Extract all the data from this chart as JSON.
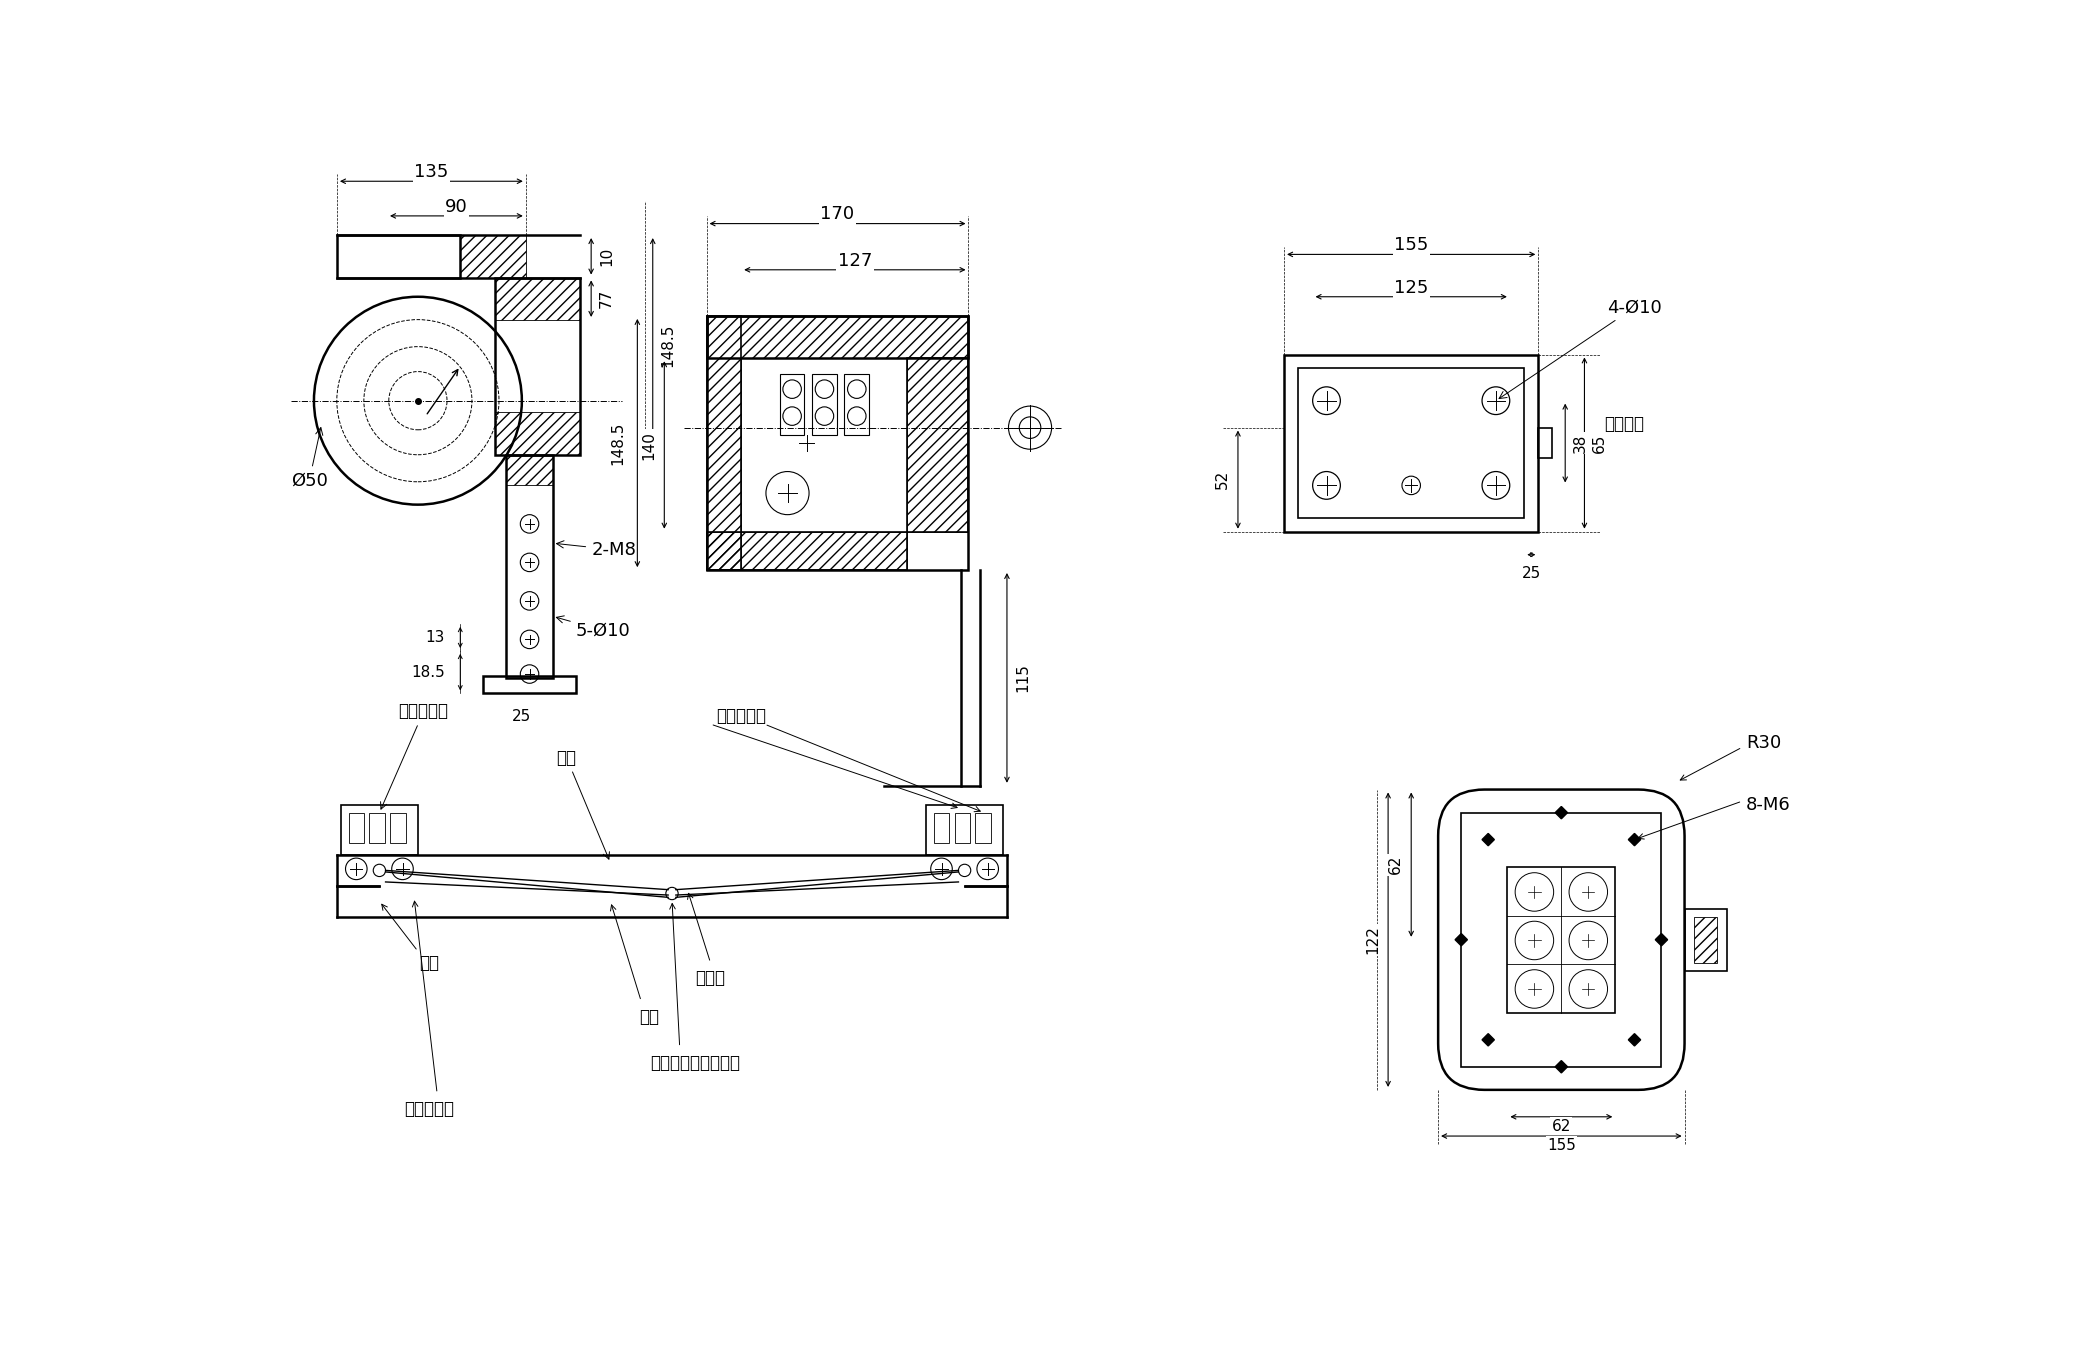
{
  "bg_color": "#ffffff",
  "line_color": "#000000",
  "fig_width": 21.0,
  "fig_height": 13.5,
  "dpi": 100,
  "labels": {
    "jiance": "擕裂检测器",
    "jiaodai": "胶带",
    "zhijia": "支架",
    "xianka": "线扣",
    "gangsi": "钓丝绳",
    "liangtiao": "两条挡索重叠的地方",
    "zhelibukou": "这里不扣死",
    "anzhuan": "安装孔尺"
  }
}
